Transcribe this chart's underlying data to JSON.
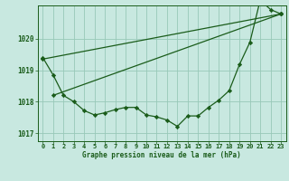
{
  "background_color": "#c8e8e0",
  "grid_color": "#98c8b8",
  "line_color": "#1a5c1a",
  "x_values": [
    0,
    1,
    2,
    3,
    4,
    5,
    6,
    7,
    8,
    9,
    10,
    11,
    12,
    13,
    14,
    15,
    16,
    17,
    18,
    19,
    20,
    21,
    22,
    23
  ],
  "series1": [
    1019.4,
    1018.85,
    1018.2,
    1018.0,
    1017.72,
    1017.58,
    1017.65,
    1017.75,
    1017.82,
    1017.82,
    1017.58,
    1017.52,
    1017.42,
    1017.22,
    1017.55,
    1017.55,
    1017.82,
    1018.05,
    1018.35,
    1019.18,
    1019.88,
    1021.22,
    1020.92,
    1020.78
  ],
  "line1_x": [
    0,
    23
  ],
  "line1_y": [
    1019.35,
    1020.78
  ],
  "line2_x": [
    1,
    23
  ],
  "line2_y": [
    1018.2,
    1020.78
  ],
  "ylim_min": 1016.75,
  "ylim_max": 1021.05,
  "yticks": [
    1017,
    1018,
    1019,
    1020
  ],
  "xticks": [
    0,
    1,
    2,
    3,
    4,
    5,
    6,
    7,
    8,
    9,
    10,
    11,
    12,
    13,
    14,
    15,
    16,
    17,
    18,
    19,
    20,
    21,
    22,
    23
  ],
  "xlabel": "Graphe pression niveau de la mer (hPa)",
  "marker": "D",
  "marker_size": 2.2,
  "line_width": 0.9,
  "tick_fontsize": 5.0,
  "xlabel_fontsize": 5.5
}
